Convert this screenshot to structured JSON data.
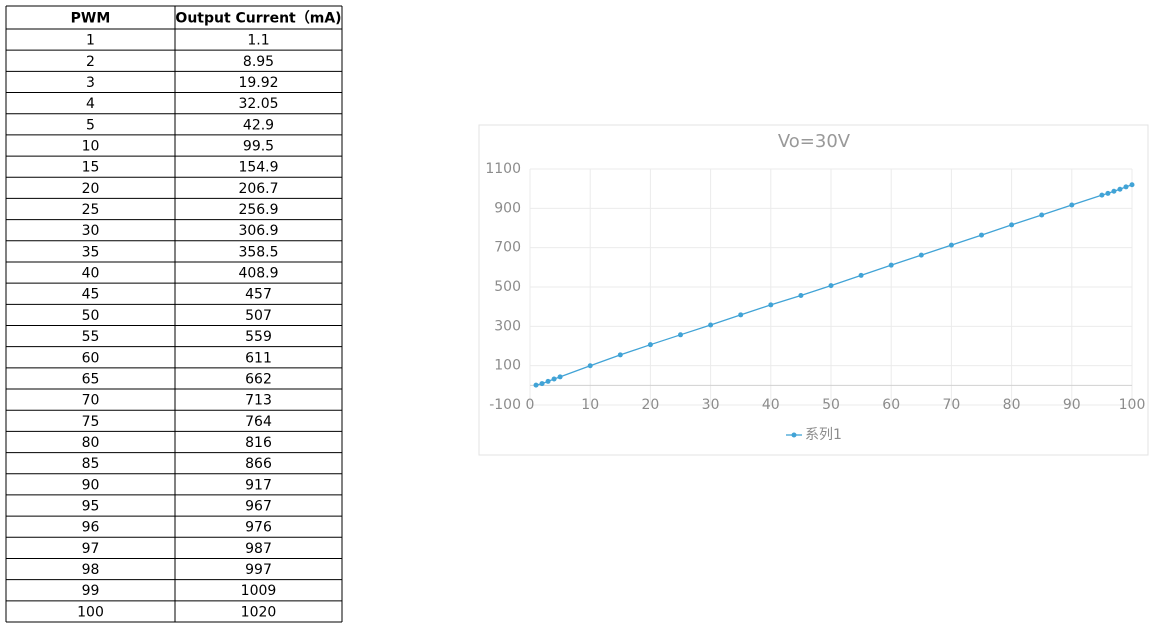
{
  "table": {
    "columns": [
      "PWM",
      "Output Current（mA)"
    ]
  },
  "chart_data": {
    "type": "line",
    "title": "Vo=30V",
    "x": [
      1,
      2,
      3,
      4,
      5,
      10,
      15,
      20,
      25,
      30,
      35,
      40,
      45,
      50,
      55,
      60,
      65,
      70,
      75,
      80,
      85,
      90,
      95,
      96,
      97,
      98,
      99,
      100
    ],
    "series": [
      {
        "name": "系列1",
        "color": "#41a3d6",
        "values": [
          1.1,
          8.95,
          19.92,
          32.05,
          42.9,
          99.5,
          154.9,
          206.7,
          256.9,
          306.9,
          358.5,
          408.9,
          457,
          507,
          559,
          611,
          662,
          713,
          764,
          816,
          866,
          917,
          967,
          976,
          987,
          997,
          1009,
          1020
        ]
      }
    ],
    "xlim": [
      0,
      100
    ],
    "xticks": [
      0,
      10,
      20,
      30,
      40,
      50,
      60,
      70,
      80,
      90,
      100
    ],
    "ylim": [
      -100,
      1100
    ],
    "yticks": [
      -100,
      100,
      300,
      500,
      700,
      900,
      1100
    ],
    "grid": true,
    "legend": "bottom"
  }
}
